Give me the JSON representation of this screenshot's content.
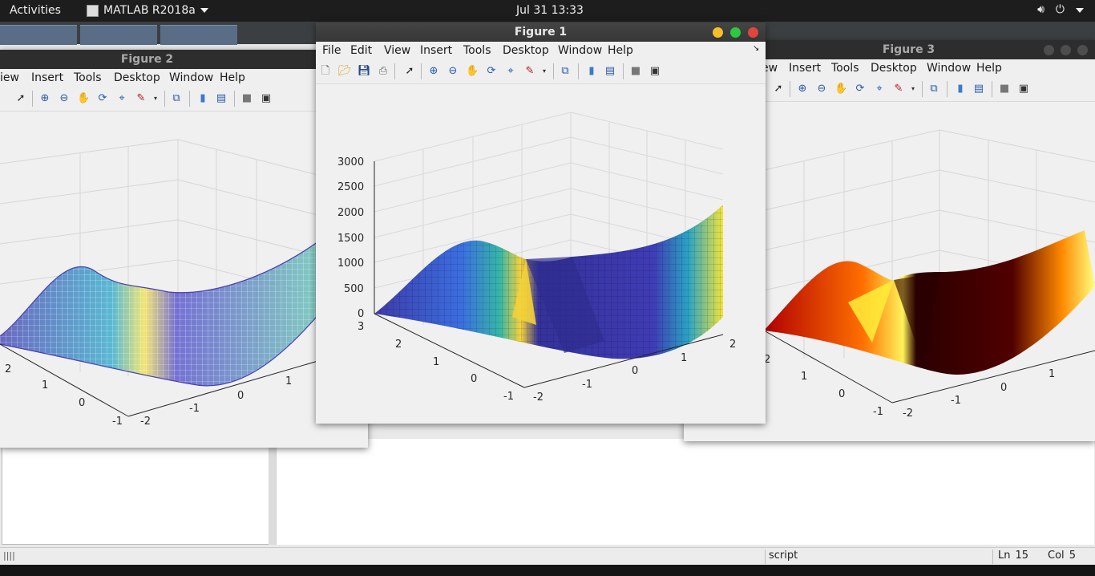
{
  "topbar": {
    "activities": "Activities",
    "app_name": "MATLAB R2018a",
    "clock": "Jul 31  13:33"
  },
  "figure1": {
    "title": "Figure 1",
    "menu": [
      "File",
      "Edit",
      "View",
      "Insert",
      "Tools",
      "Desktop",
      "Window",
      "Help"
    ],
    "z_ticks": [
      "3000",
      "2500",
      "2000",
      "1500",
      "1000",
      "500",
      "0"
    ],
    "y_ticks": [
      "3",
      "2",
      "1",
      "0",
      "-1"
    ],
    "x_ticks": [
      "-2",
      "-1",
      "0",
      "1",
      "2"
    ]
  },
  "figure2": {
    "title": "Figure 2",
    "menu": [
      "iew",
      "Insert",
      "Tools",
      "Desktop",
      "Window",
      "Help"
    ],
    "y_ticks": [
      "2",
      "1",
      "0",
      "-1"
    ],
    "x_ticks": [
      "-2",
      "-1",
      "0",
      "1"
    ]
  },
  "figure3": {
    "title": "Figure 3",
    "menu": [
      "ew",
      "Insert",
      "Tools",
      "Desktop",
      "Window",
      "Help"
    ],
    "y_ticks": [
      "2",
      "1",
      "0",
      "-1"
    ],
    "x_ticks": [
      "-2",
      "-1",
      "0",
      "1"
    ]
  },
  "statusbar": {
    "mode": "script",
    "ln_label": "Ln",
    "ln_value": "15",
    "col_label": "Col",
    "col_value": "5"
  },
  "colors": {
    "parula_dark": "#352a87",
    "parula_yellow": "#f9fb0e",
    "hot_red": "#c00000",
    "close_red": "#e2453c",
    "min_yellow": "#f5bf2a",
    "max_green": "#2bc840"
  }
}
